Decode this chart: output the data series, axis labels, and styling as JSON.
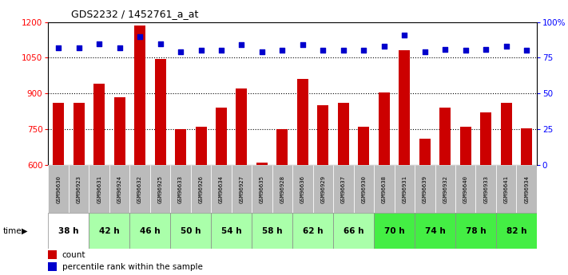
{
  "title": "GDS2232 / 1452761_a_at",
  "samples": [
    "GSM96630",
    "GSM96923",
    "GSM96631",
    "GSM96924",
    "GSM96632",
    "GSM96925",
    "GSM96633",
    "GSM96926",
    "GSM96634",
    "GSM96927",
    "GSM96635",
    "GSM96928",
    "GSM96636",
    "GSM96929",
    "GSM96637",
    "GSM96930",
    "GSM96638",
    "GSM96931",
    "GSM96639",
    "GSM96932",
    "GSM96640",
    "GSM96933",
    "GSM96641",
    "GSM96934"
  ],
  "counts": [
    860,
    860,
    940,
    885,
    1185,
    1045,
    750,
    760,
    840,
    920,
    610,
    750,
    960,
    850,
    860,
    760,
    905,
    1080,
    710,
    840,
    760,
    820,
    860,
    755
  ],
  "percentiles": [
    82,
    82,
    85,
    82,
    90,
    85,
    79,
    80,
    80,
    84,
    79,
    80,
    84,
    80,
    80,
    80,
    83,
    91,
    79,
    81,
    80,
    81,
    83,
    80
  ],
  "time_groups": [
    {
      "label": "38 h",
      "start": 0,
      "end": 2,
      "color": "#ffffff"
    },
    {
      "label": "42 h",
      "start": 2,
      "end": 4,
      "color": "#aaffaa"
    },
    {
      "label": "46 h",
      "start": 4,
      "end": 6,
      "color": "#aaffaa"
    },
    {
      "label": "50 h",
      "start": 6,
      "end": 8,
      "color": "#aaffaa"
    },
    {
      "label": "54 h",
      "start": 8,
      "end": 10,
      "color": "#aaffaa"
    },
    {
      "label": "58 h",
      "start": 10,
      "end": 12,
      "color": "#aaffaa"
    },
    {
      "label": "62 h",
      "start": 12,
      "end": 14,
      "color": "#aaffaa"
    },
    {
      "label": "66 h",
      "start": 14,
      "end": 16,
      "color": "#aaffaa"
    },
    {
      "label": "70 h",
      "start": 16,
      "end": 18,
      "color": "#44ee44"
    },
    {
      "label": "74 h",
      "start": 18,
      "end": 20,
      "color": "#44ee44"
    },
    {
      "label": "78 h",
      "start": 20,
      "end": 22,
      "color": "#44ee44"
    },
    {
      "label": "82 h",
      "start": 22,
      "end": 24,
      "color": "#44ee44"
    }
  ],
  "ylim_left": [
    600,
    1200
  ],
  "ylim_right": [
    0,
    100
  ],
  "yticks_left": [
    600,
    750,
    900,
    1050,
    1200
  ],
  "yticks_right": [
    0,
    25,
    50,
    75,
    100
  ],
  "bar_color": "#cc0000",
  "dot_color": "#0000cc",
  "sample_bg_color": "#bbbbbb"
}
